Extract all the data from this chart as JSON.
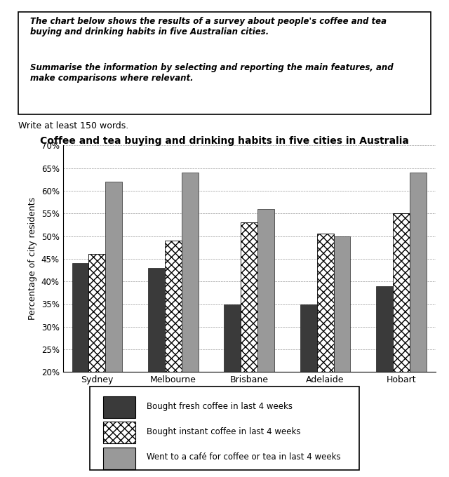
{
  "title": "Coffee and tea buying and drinking habits in five cities in Australia",
  "subtext": "Write at least 150 words.",
  "ylabel": "Percentage of city residents",
  "cities": [
    "Sydney",
    "Melbourne",
    "Brisbane",
    "Adelaide",
    "Hobart"
  ],
  "fresh_coffee": [
    44,
    43,
    35,
    35,
    39
  ],
  "instant_coffee": [
    46,
    49,
    53,
    50.5,
    55
  ],
  "cafe_visits": [
    62,
    64,
    56,
    50,
    64
  ],
  "ylim": [
    20,
    70
  ],
  "yticks": [
    20,
    25,
    30,
    35,
    40,
    45,
    50,
    55,
    60,
    65,
    70
  ],
  "color_fresh": "#3a3a3a",
  "color_cafe": "#999999",
  "legend_labels": [
    "Bought fresh coffee in last 4 weeks",
    "Bought instant coffee in last 4 weeks",
    "Went to a café for coffee or tea in last 4 weeks"
  ],
  "bar_width": 0.22
}
